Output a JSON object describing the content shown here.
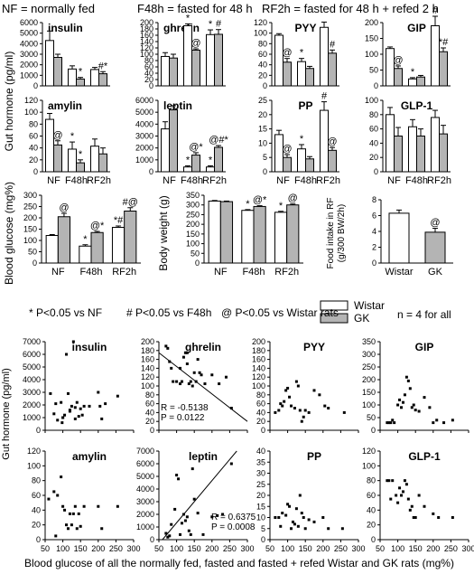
{
  "header": {
    "nf": "NF = normally fed",
    "f48": "F48h = fasted for 48 h",
    "rf2": "RF2h = fasted for 48 h + refed 2 h"
  },
  "labels": {
    "gut_hormone": "Gut hormone (pg/ml)",
    "blood_glucose": "Blood glucose (mg%)",
    "body_weight": "Body weight (g)",
    "food_intake_1": "Food intake in RF",
    "food_intake_2": "(g/300 BW/2h)",
    "gut_hormone_scatter": "Gut hormone (pg/ml)",
    "bottom_xlabel": "Blood glucose of all the normally fed, fasted and fasted + refed Wistar and GK rats (mg%)"
  },
  "legend": {
    "wistar": "Wistar",
    "gk": "GK",
    "n": "n = 4 for all",
    "sig1": "* P<0.05 vs NF",
    "sig2": "# P<0.05 vs F48h",
    "sig3": "@ P<0.05 vs Wistar rats",
    "colors": {
      "wistar": "#ffffff",
      "gk": "#b4b4b4",
      "line": "#000000"
    }
  },
  "chart_data": [
    {
      "id": "insulin",
      "type": "bar",
      "title": "insulin",
      "categories": [
        "NF",
        "F48h",
        "RF2h"
      ],
      "ylim": [
        0,
        6000
      ],
      "yticks": [
        0,
        1000,
        2000,
        3000,
        4000,
        5000,
        6000
      ],
      "series": [
        {
          "name": "Wistar",
          "values": [
            4300,
            1600,
            1550
          ],
          "err": [
            900,
            300,
            200
          ],
          "marks": [
            "",
            "",
            ""
          ]
        },
        {
          "name": "GK",
          "values": [
            2700,
            650,
            1150
          ],
          "err": [
            300,
            150,
            200
          ],
          "marks": [
            "",
            "*",
            "#*"
          ]
        }
      ]
    },
    {
      "id": "ghrelin",
      "type": "bar",
      "title": "ghrelin",
      "categories": [
        "NF",
        "F48h",
        "RF2h"
      ],
      "ylim": [
        0,
        200
      ],
      "yticks": [
        0,
        20,
        40,
        60,
        80,
        100,
        120,
        140,
        160,
        180,
        200
      ],
      "series": [
        {
          "name": "Wistar",
          "values": [
            93,
            190,
            162
          ],
          "err": [
            12,
            6,
            15
          ],
          "marks": [
            "",
            "*",
            "*"
          ]
        },
        {
          "name": "GK",
          "values": [
            88,
            113,
            163
          ],
          "err": [
            12,
            4,
            15
          ],
          "marks": [
            "",
            "@",
            "#"
          ]
        }
      ]
    },
    {
      "id": "pyy",
      "type": "bar",
      "title": "PYY",
      "categories": [
        "NF",
        "F48h",
        "RF2h"
      ],
      "ylim": [
        0,
        120
      ],
      "yticks": [
        0,
        20,
        40,
        60,
        80,
        100,
        120
      ],
      "series": [
        {
          "name": "Wistar",
          "values": [
            96,
            46,
            111
          ],
          "err": [
            3,
            6,
            10
          ],
          "marks": [
            "",
            "*",
            ""
          ]
        },
        {
          "name": "GK",
          "values": [
            45,
            33,
            62
          ],
          "err": [
            7,
            4,
            6
          ],
          "marks": [
            "@",
            "",
            "#"
          ]
        }
      ]
    },
    {
      "id": "gip",
      "type": "bar",
      "title": "GIP",
      "categories": [
        "NF",
        "F48h",
        "RF2h"
      ],
      "ylim": [
        0,
        200
      ],
      "yticks": [
        0,
        50,
        100,
        150,
        200
      ],
      "series": [
        {
          "name": "Wistar",
          "values": [
            118,
            22,
            190
          ],
          "err": [
            5,
            4,
            30
          ],
          "marks": [
            "",
            "*",
            "#"
          ]
        },
        {
          "name": "GK",
          "values": [
            55,
            28,
            108
          ],
          "err": [
            8,
            5,
            12
          ],
          "marks": [
            "@",
            "",
            "*#"
          ]
        }
      ]
    },
    {
      "id": "amylin",
      "type": "bar",
      "title": "amylin",
      "categories": [
        "NF",
        "F48h",
        "RF2h"
      ],
      "ylim": [
        0,
        120
      ],
      "yticks": [
        0,
        20,
        40,
        60,
        80,
        100,
        120
      ],
      "series": [
        {
          "name": "Wistar",
          "values": [
            88,
            38,
            43
          ],
          "err": [
            10,
            12,
            12
          ],
          "marks": [
            "",
            "*",
            ""
          ]
        },
        {
          "name": "GK",
          "values": [
            45,
            15,
            30
          ],
          "err": [
            7,
            5,
            10
          ],
          "marks": [
            "@",
            "*",
            ""
          ]
        }
      ]
    },
    {
      "id": "leptin",
      "type": "bar",
      "title": "leptin",
      "categories": [
        "NF",
        "F48h",
        "RF2h"
      ],
      "ylim": [
        0,
        6000
      ],
      "yticks": [
        0,
        1000,
        2000,
        3000,
        4000,
        5000,
        6000
      ],
      "series": [
        {
          "name": "Wistar",
          "values": [
            3600,
            400,
            400
          ],
          "err": [
            600,
            100,
            100
          ],
          "marks": [
            "",
            "*",
            "*"
          ]
        },
        {
          "name": "GK",
          "values": [
            5200,
            1400,
            2050
          ],
          "err": [
            350,
            200,
            150
          ],
          "marks": [
            "",
            "@*",
            "@#*"
          ]
        }
      ]
    },
    {
      "id": "pp",
      "type": "bar",
      "title": "PP",
      "categories": [
        "NF",
        "F48h",
        "RF2h"
      ],
      "ylim": [
        0,
        25
      ],
      "yticks": [
        0,
        5,
        10,
        15,
        20,
        25
      ],
      "series": [
        {
          "name": "Wistar",
          "values": [
            13,
            8,
            21.5
          ],
          "err": [
            1.5,
            1.5,
            3
          ],
          "marks": [
            "",
            "*",
            "#"
          ]
        },
        {
          "name": "GK",
          "values": [
            5,
            4.5,
            7.5
          ],
          "err": [
            1,
            0.8,
            1
          ],
          "marks": [
            "@",
            "",
            "@"
          ]
        }
      ]
    },
    {
      "id": "glp1",
      "type": "bar",
      "title": "GLP-1",
      "categories": [
        "NF",
        "F48h",
        "RF2h"
      ],
      "ylim": [
        0,
        100
      ],
      "yticks": [
        0,
        20,
        40,
        60,
        80,
        100
      ],
      "series": [
        {
          "name": "Wistar",
          "values": [
            80,
            63,
            76
          ],
          "err": [
            10,
            10,
            10
          ],
          "marks": [
            "",
            "",
            ""
          ]
        },
        {
          "name": "GK",
          "values": [
            50,
            50,
            53
          ],
          "err": [
            12,
            10,
            12
          ],
          "marks": [
            "",
            "",
            ""
          ]
        }
      ]
    },
    {
      "id": "glucose",
      "type": "bar",
      "title": "",
      "categories": [
        "NF",
        "F48h",
        "RF2h"
      ],
      "ylim": [
        0,
        300
      ],
      "yticks": [
        0,
        50,
        100,
        150,
        200,
        250,
        300
      ],
      "series": [
        {
          "name": "Wistar",
          "values": [
            122,
            75,
            158
          ],
          "err": [
            4,
            6,
            6
          ],
          "marks": [
            "",
            "*",
            "*#"
          ]
        },
        {
          "name": "GK",
          "values": [
            205,
            135,
            230
          ],
          "err": [
            15,
            5,
            15
          ],
          "marks": [
            "@",
            "@*",
            "#@"
          ]
        }
      ]
    },
    {
      "id": "weight",
      "type": "bar",
      "title": "",
      "categories": [
        "NF",
        "F48h",
        "RF2h"
      ],
      "ylim": [
        0,
        350
      ],
      "yticks": [
        0,
        50,
        100,
        150,
        200,
        250,
        300,
        350
      ],
      "series": [
        {
          "name": "Wistar",
          "values": [
            320,
            272,
            262
          ],
          "err": [
            3,
            4,
            5
          ],
          "marks": [
            "",
            "*",
            "*"
          ]
        },
        {
          "name": "GK",
          "values": [
            317,
            292,
            300
          ],
          "err": [
            3,
            4,
            5
          ],
          "marks": [
            "",
            "@*",
            "@"
          ]
        }
      ]
    },
    {
      "id": "food",
      "type": "bar",
      "title": "",
      "categories": [
        "Wistar",
        "GK"
      ],
      "ylim": [
        0,
        8
      ],
      "yticks": [
        0,
        2,
        4,
        6,
        8
      ],
      "series": [
        {
          "name": "Wistar",
          "values": [
            6.3,
            null
          ],
          "err": [
            0.4,
            null
          ],
          "marks": [
            "",
            ""
          ]
        },
        {
          "name": "GK",
          "values": [
            null,
            3.9
          ],
          "err": [
            null,
            0.5
          ],
          "marks": [
            "",
            "@"
          ]
        }
      ]
    },
    {
      "id": "s_insulin",
      "type": "scatter",
      "title": "insulin",
      "xlim": [
        50,
        300
      ],
      "ylim": [
        0,
        7000
      ],
      "yticks": [
        0,
        1000,
        2000,
        3000,
        4000,
        5000,
        6000,
        7000
      ],
      "x": [
        65,
        75,
        80,
        85,
        95,
        98,
        100,
        105,
        110,
        115,
        120,
        125,
        130,
        135,
        140,
        145,
        150,
        155,
        160,
        175,
        200,
        205,
        210,
        220,
        255,
        120,
        100,
        135
      ],
      "y": [
        2900,
        1300,
        2100,
        800,
        2200,
        600,
        1000,
        1200,
        6000,
        2900,
        1500,
        1900,
        7000,
        900,
        2200,
        1100,
        1700,
        1200,
        1900,
        1900,
        3000,
        1900,
        900,
        2100,
        2700,
        1600,
        1000,
        1800
      ]
    },
    {
      "id": "s_ghrelin",
      "type": "scatter",
      "title": "ghrelin",
      "xlim": [
        50,
        300
      ],
      "ylim": [
        0,
        200
      ],
      "yticks": [
        0,
        20,
        40,
        60,
        80,
        100,
        120,
        140,
        160,
        180,
        200
      ],
      "x": [
        70,
        75,
        80,
        85,
        90,
        100,
        110,
        115,
        120,
        125,
        130,
        135,
        140,
        145,
        150,
        155,
        160,
        165,
        170,
        180,
        200,
        220,
        240,
        255,
        110,
        130
      ],
      "y": [
        190,
        185,
        155,
        140,
        110,
        110,
        105,
        110,
        165,
        175,
        150,
        105,
        110,
        100,
        130,
        110,
        160,
        130,
        125,
        105,
        125,
        105,
        120,
        50,
        140,
        175
      ],
      "fit": {
        "x1": 50,
        "y1": 175,
        "x2": 300,
        "y2": 20
      },
      "annot": [
        "R = -0.5138",
        "P = 0.0122"
      ]
    },
    {
      "id": "s_pyy",
      "type": "scatter",
      "title": "PYY",
      "xlim": [
        50,
        300
      ],
      "ylim": [
        0,
        200
      ],
      "yticks": [
        0,
        20,
        40,
        60,
        80,
        100,
        120,
        140,
        160,
        180,
        200
      ],
      "x": [
        65,
        75,
        80,
        85,
        90,
        95,
        100,
        105,
        110,
        120,
        125,
        130,
        135,
        140,
        145,
        150,
        160,
        175,
        190,
        205,
        215,
        260
      ],
      "y": [
        40,
        45,
        60,
        55,
        65,
        90,
        95,
        75,
        55,
        50,
        110,
        100,
        45,
        20,
        30,
        45,
        40,
        90,
        80,
        55,
        50,
        40
      ]
    },
    {
      "id": "s_gip",
      "type": "scatter",
      "title": "GIP",
      "xlim": [
        50,
        300
      ],
      "ylim": [
        0,
        350
      ],
      "yticks": [
        0,
        50,
        100,
        150,
        200,
        250,
        300,
        350
      ],
      "x": [
        70,
        75,
        80,
        85,
        90,
        100,
        105,
        110,
        115,
        120,
        125,
        130,
        135,
        140,
        145,
        150,
        160,
        175,
        190,
        200,
        210,
        230,
        255
      ],
      "y": [
        30,
        30,
        30,
        40,
        30,
        100,
        120,
        90,
        110,
        140,
        210,
        195,
        165,
        90,
        100,
        80,
        75,
        130,
        90,
        30,
        40,
        30,
        40
      ]
    },
    {
      "id": "s_amylin",
      "type": "scatter",
      "title": "amylin",
      "xlim": [
        50,
        300
      ],
      "ylim": [
        0,
        120
      ],
      "yticks": [
        0,
        20,
        40,
        60,
        80,
        100,
        120
      ],
      "x": [
        60,
        75,
        80,
        85,
        95,
        100,
        105,
        110,
        115,
        120,
        125,
        130,
        135,
        140,
        145,
        150,
        160,
        200,
        210,
        255
      ],
      "y": [
        55,
        65,
        5,
        60,
        85,
        45,
        40,
        20,
        15,
        35,
        20,
        35,
        45,
        15,
        35,
        18,
        45,
        45,
        15,
        45
      ]
    },
    {
      "id": "s_leptin",
      "type": "scatter",
      "title": "leptin",
      "xlim": [
        50,
        300
      ],
      "ylim": [
        0,
        7000
      ],
      "yticks": [
        0,
        1000,
        2000,
        3000,
        4000,
        5000,
        6000,
        7000
      ],
      "x": [
        70,
        75,
        80,
        85,
        95,
        100,
        105,
        110,
        115,
        120,
        125,
        130,
        135,
        140,
        145,
        150,
        160,
        175,
        200,
        215,
        230,
        255
      ],
      "y": [
        500,
        200,
        300,
        1200,
        2400,
        5100,
        4800,
        400,
        1300,
        2000,
        1500,
        1800,
        700,
        400,
        5600,
        3200,
        2100,
        400,
        1800,
        1900,
        2000,
        6000
      ],
      "fit": {
        "x1": 60,
        "y1": 0,
        "x2": 270,
        "y2": 7000
      },
      "annot": [
        "R = 0.6375",
        "P = 0.0008"
      ]
    },
    {
      "id": "s_pp",
      "type": "scatter",
      "title": "PP",
      "xlim": [
        50,
        300
      ],
      "ylim": [
        0,
        40
      ],
      "yticks": [
        0,
        5,
        10,
        15,
        20,
        25,
        30,
        35,
        40
      ],
      "x": [
        65,
        75,
        80,
        85,
        95,
        100,
        105,
        110,
        115,
        120,
        125,
        130,
        135,
        140,
        145,
        150,
        160,
        175,
        200,
        215,
        255
      ],
      "y": [
        10,
        10,
        6,
        12,
        11,
        16,
        15,
        5,
        8,
        7,
        14,
        6,
        20,
        12,
        10,
        5,
        9,
        8,
        10,
        5,
        5
      ]
    },
    {
      "id": "s_glp1",
      "type": "scatter",
      "title": "GLP-1",
      "xlim": [
        50,
        300
      ],
      "ylim": [
        0,
        120
      ],
      "yticks": [
        0,
        20,
        40,
        60,
        80,
        100,
        120
      ],
      "x": [
        70,
        75,
        80,
        85,
        95,
        100,
        105,
        110,
        115,
        120,
        125,
        130,
        135,
        140,
        145,
        150,
        160,
        175,
        200,
        215,
        255
      ],
      "y": [
        80,
        80,
        55,
        80,
        60,
        50,
        70,
        60,
        65,
        80,
        75,
        55,
        40,
        45,
        30,
        30,
        60,
        45,
        35,
        30,
        30
      ]
    }
  ],
  "scatter_xticks": [
    50,
    100,
    150,
    200,
    250,
    300
  ]
}
